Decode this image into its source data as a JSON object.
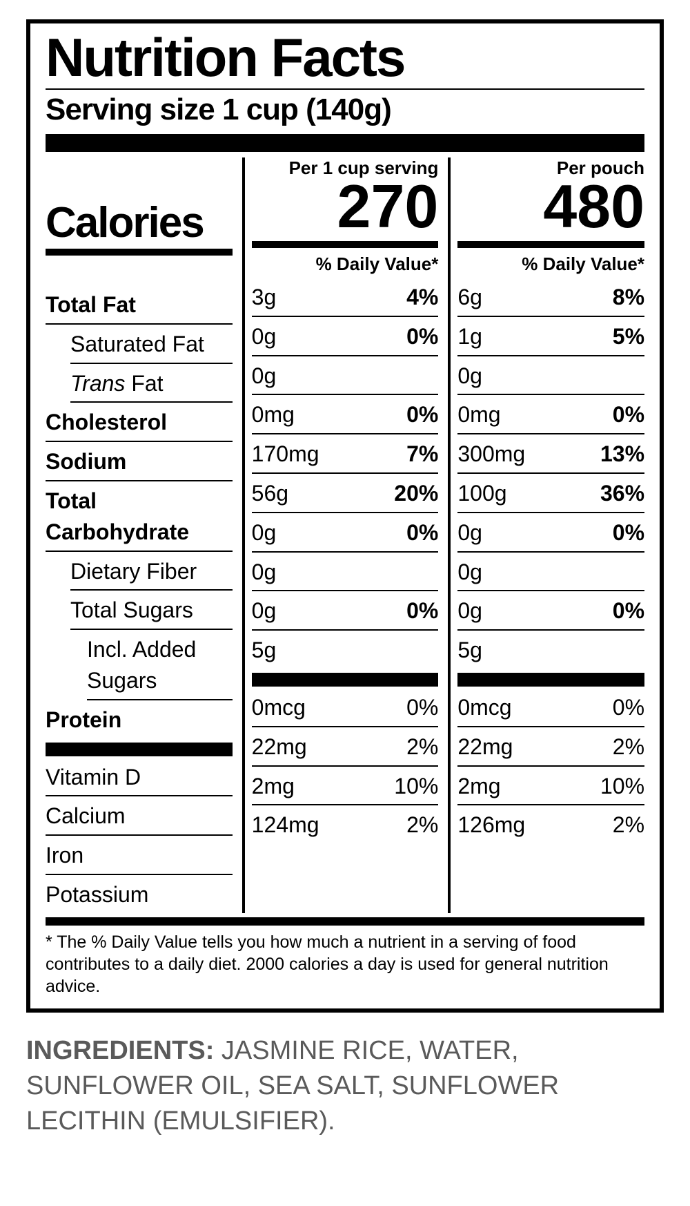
{
  "title": "Nutrition Facts",
  "serving_line": "Serving size 1 cup (140g)",
  "calories_label": "Calories",
  "col_serving_label": "Per 1 cup serving",
  "col_pouch_label": "Per pouch",
  "calories_serving": "270",
  "calories_pouch": "480",
  "dv_label": "% Daily Value*",
  "rows": {
    "total_fat": {
      "label": "Total Fat",
      "s_amt": "3g",
      "s_pct": "4%",
      "p_amt": "6g",
      "p_pct": "8%"
    },
    "sat_fat": {
      "label": "Saturated Fat",
      "s_amt": "0g",
      "s_pct": "0%",
      "p_amt": "1g",
      "p_pct": "5%"
    },
    "trans_fat": {
      "label_pre": "Trans",
      "label_post": " Fat",
      "s_amt": "0g",
      "s_pct": "",
      "p_amt": "0g",
      "p_pct": ""
    },
    "cholesterol": {
      "label": "Cholesterol",
      "s_amt": "0mg",
      "s_pct": "0%",
      "p_amt": "0mg",
      "p_pct": "0%"
    },
    "sodium": {
      "label": "Sodium",
      "s_amt": "170mg",
      "s_pct": "7%",
      "p_amt": "300mg",
      "p_pct": "13%"
    },
    "total_carb": {
      "label": "Total Carbohydrate",
      "s_amt": "56g",
      "s_pct": "20%",
      "p_amt": "100g",
      "p_pct": "36%"
    },
    "fiber": {
      "label": "Dietary Fiber",
      "s_amt": "0g",
      "s_pct": "0%",
      "p_amt": "0g",
      "p_pct": "0%"
    },
    "total_sugars": {
      "label": "Total Sugars",
      "s_amt": "0g",
      "s_pct": "",
      "p_amt": "0g",
      "p_pct": ""
    },
    "added_sugars": {
      "label": "Incl. Added Sugars",
      "s_amt": "0g",
      "s_pct": "0%",
      "p_amt": "0g",
      "p_pct": "0%"
    },
    "protein": {
      "label": "Protein",
      "s_amt": "5g",
      "s_pct": "",
      "p_amt": "5g",
      "p_pct": ""
    },
    "vitamin_d": {
      "label": "Vitamin D",
      "s_amt": "0mcg",
      "s_pct": "0%",
      "p_amt": "0mcg",
      "p_pct": "0%"
    },
    "calcium": {
      "label": "Calcium",
      "s_amt": "22mg",
      "s_pct": "2%",
      "p_amt": "22mg",
      "p_pct": "2%"
    },
    "iron": {
      "label": "Iron",
      "s_amt": "2mg",
      "s_pct": "10%",
      "p_amt": "2mg",
      "p_pct": "10%"
    },
    "potassium": {
      "label": "Potassium",
      "s_amt": "124mg",
      "s_pct": "2%",
      "p_amt": "126mg",
      "p_pct": "2%"
    }
  },
  "footnote": "* The % Daily Value tells you how much a nutrient in a serving of food contributes to a daily diet. 2000 calories a day is used for general nutrition advice.",
  "ingredients_label": "INGREDIENTS:",
  "ingredients_text": " JASMINE RICE, WATER, SUNFLOWER OIL, SEA SALT, SUNFLOWER LECITHIN (EMULSIFIER).",
  "colors": {
    "text": "#000000",
    "border": "#000000",
    "background": "#ffffff",
    "ingredients": "#5a5a5a"
  }
}
